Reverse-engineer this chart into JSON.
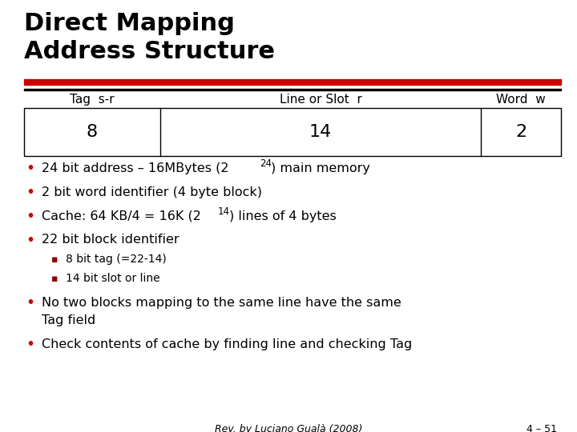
{
  "title_line1": "Direct Mapping",
  "title_line2": "Address Structure",
  "title_fontsize": 22,
  "bg_color": "#ffffff",
  "red_bar_color": "#cc0000",
  "table_header": [
    "Tag  s-r",
    "Line or Slot  r",
    "Word  w"
  ],
  "table_values": [
    "8",
    "14",
    "2"
  ],
  "bullet_color": "#cc0000",
  "sub_bullet_color": "#cc0000",
  "sub_square_color": "#8b0000",
  "bullets_simple": [
    "2 bit word identifier (4 byte block)",
    "22 bit block identifier"
  ],
  "sub_bullets": [
    "8 bit tag (=22-14)",
    "14 bit slot or line"
  ],
  "extra_bullets": [
    "No two blocks mapping to the same line have the same\nTag field",
    "Check contents of cache by finding line and checking Tag"
  ],
  "footer_left": "Rev. by Luciano Gualà (2008)",
  "footer_right": "4 – 51",
  "font_family": "DejaVu Sans",
  "title_font": "DejaVu Sans",
  "bullet_fontsize": 11.5,
  "sub_bullet_fontsize": 10,
  "footer_fontsize": 9,
  "table_val_fontsize": 16,
  "header_fontsize": 11
}
